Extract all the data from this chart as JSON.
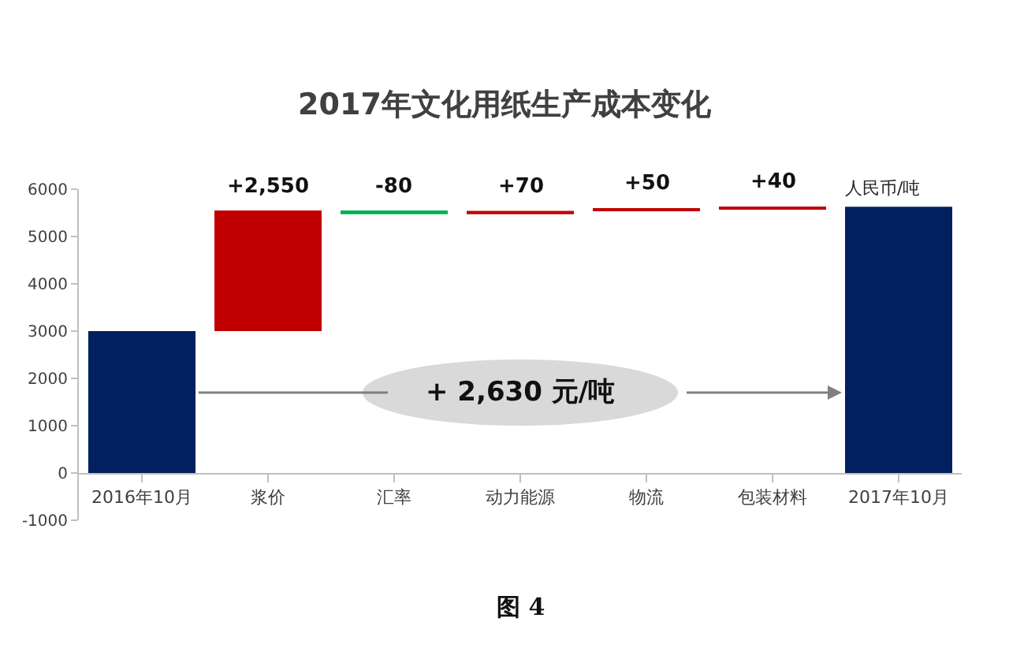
{
  "chart_data": {
    "type": "bar",
    "title": "2017年文化用纸生产成本变化",
    "categories": [
      "2016年10月",
      "浆价",
      "汇率",
      "动力能源",
      "物流",
      "包装材料",
      "2017年10月"
    ],
    "values": [
      3000,
      2550,
      -80,
      70,
      50,
      40,
      5630
    ],
    "base": [
      0,
      3000,
      5550,
      5470,
      5540,
      5590,
      0
    ],
    "colors": [
      "#002060",
      "#c00000",
      "#00b050",
      "#c00000",
      "#c00000",
      "#c00000",
      "#002060"
    ],
    "value_labels": [
      null,
      "+2,550",
      "-80",
      "+70",
      "+50",
      "+40",
      null
    ],
    "ylim": [
      -1000,
      6000
    ],
    "yticks": [
      -1000,
      0,
      1000,
      2000,
      3000,
      4000,
      5000,
      6000
    ],
    "grid": false,
    "legend": false,
    "annotations": [
      "人民币/吨",
      "+ 2,630 元/吨",
      "图 4"
    ]
  }
}
